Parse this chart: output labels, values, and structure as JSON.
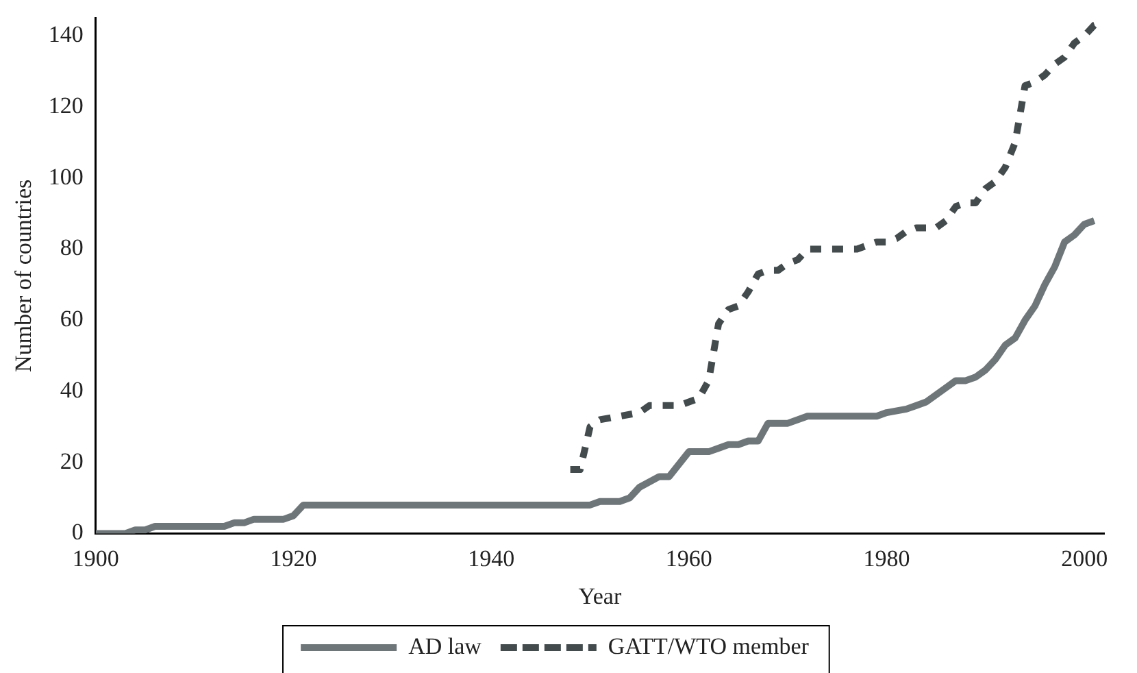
{
  "chart_data": {
    "type": "line",
    "xlabel": "Year",
    "ylabel": "Number of countries",
    "xlim": [
      1900,
      2002
    ],
    "xticks": [
      1900,
      1920,
      1940,
      1960,
      1980,
      2000
    ],
    "ylim": [
      0,
      145
    ],
    "yticks": [
      0,
      20,
      40,
      60,
      80,
      100,
      120,
      140
    ],
    "grid": false,
    "legend": "bottom",
    "marker": "none",
    "series": [
      {
        "name": "AD law",
        "color": "#6f7679",
        "line_style": "solid",
        "x": [
          1900,
          1903,
          1904,
          1905,
          1906,
          1913,
          1914,
          1915,
          1916,
          1919,
          1920,
          1921,
          1950,
          1951,
          1953,
          1954,
          1955,
          1957,
          1958,
          1960,
          1962,
          1963,
          1964,
          1965,
          1966,
          1967,
          1968,
          1970,
          1972,
          1979,
          1980,
          1982,
          1983,
          1984,
          1986,
          1987,
          1988,
          1989,
          1990,
          1991,
          1992,
          1993,
          1994,
          1995,
          1996,
          1997,
          1998,
          1999,
          2000,
          2001
        ],
        "values": [
          0,
          0,
          1,
          1,
          2,
          2,
          3,
          3,
          4,
          4,
          5,
          8,
          8,
          9,
          9,
          10,
          13,
          16,
          16,
          23,
          23,
          24,
          25,
          25,
          26,
          26,
          31,
          31,
          33,
          33,
          34,
          35,
          36,
          37,
          41,
          43,
          43,
          44,
          46,
          49,
          53,
          55,
          60,
          64,
          70,
          75,
          82,
          84,
          87,
          88
        ]
      },
      {
        "name": "GATT/WTO member",
        "color": "#434b4d",
        "line_style": "dashed",
        "x": [
          1948,
          1949,
          1950,
          1951,
          1953,
          1955,
          1956,
          1959,
          1960,
          1961,
          1962,
          1963,
          1964,
          1965,
          1966,
          1967,
          1968,
          1969,
          1970,
          1971,
          1972,
          1977,
          1978,
          1979,
          1980,
          1981,
          1982,
          1983,
          1985,
          1986,
          1987,
          1988,
          1989,
          1990,
          1991,
          1992,
          1993,
          1994,
          1995,
          1996,
          1997,
          1998,
          1999,
          2000,
          2001,
          2002
        ],
        "values": [
          18,
          18,
          30,
          32,
          33,
          34,
          36,
          36,
          37,
          38,
          43,
          59,
          63,
          64,
          68,
          73,
          74,
          74,
          76,
          77,
          80,
          80,
          81,
          82,
          82,
          83,
          85,
          86,
          86,
          88,
          92,
          93,
          93,
          97,
          99,
          103,
          110,
          126,
          127,
          129,
          132,
          134,
          138,
          140,
          143,
          144
        ]
      }
    ]
  }
}
